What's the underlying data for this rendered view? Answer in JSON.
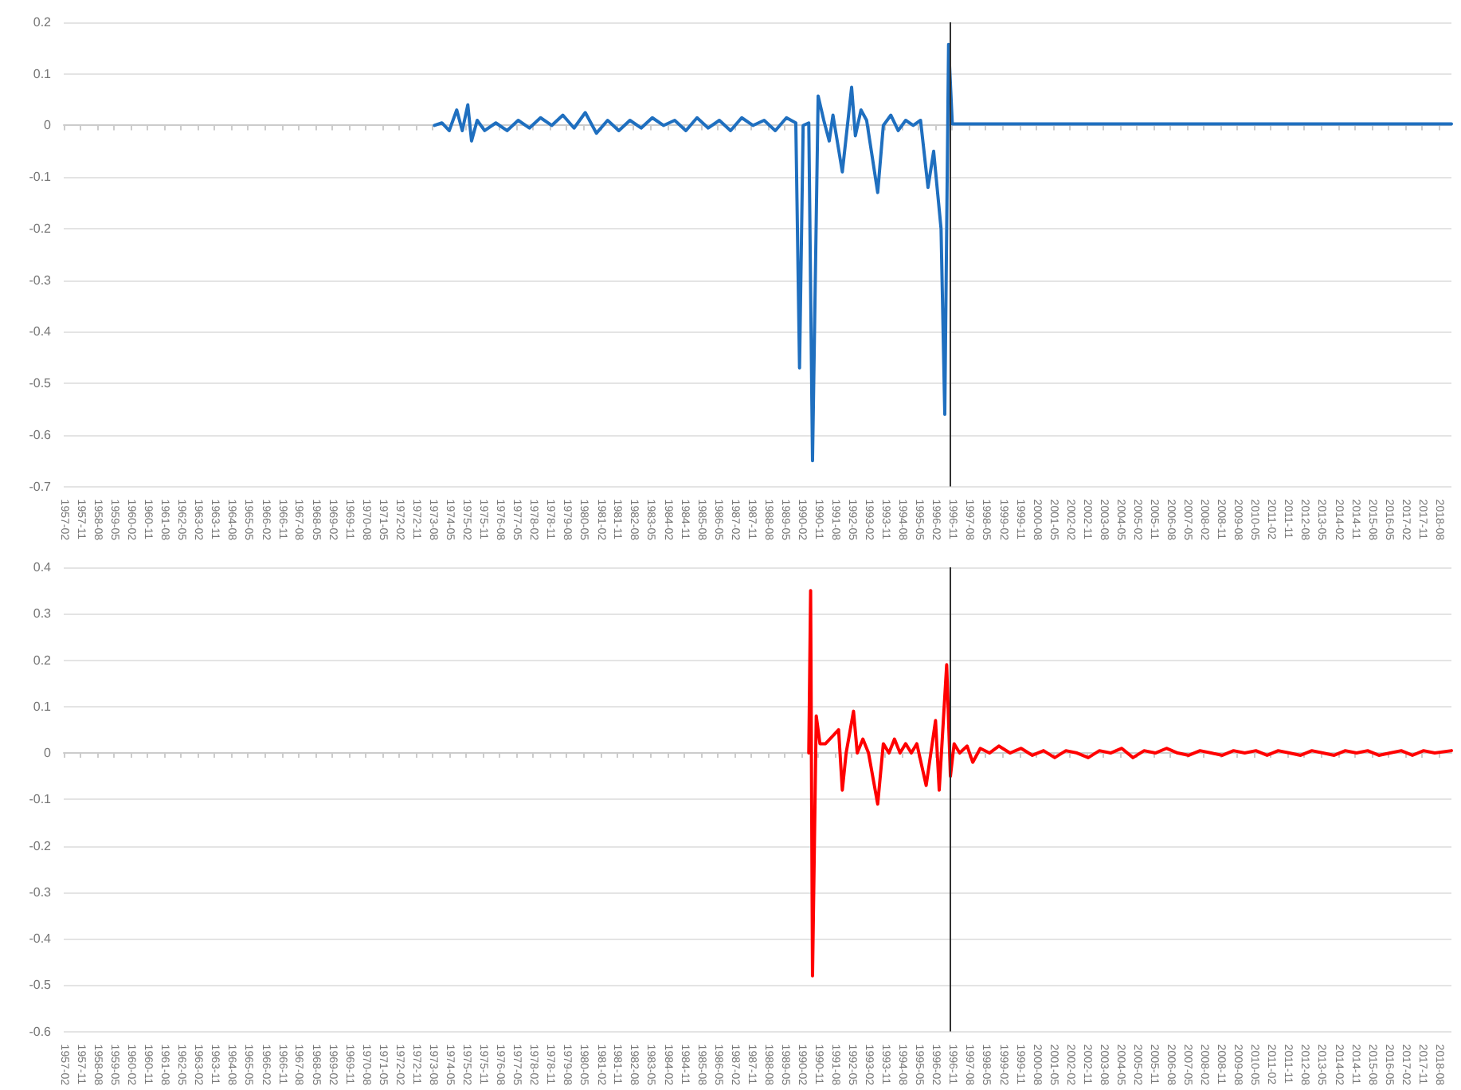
{
  "chart_data": [
    {
      "type": "line",
      "marker": "none",
      "grid": "y",
      "xlim": [
        "1957-02",
        "2019-03"
      ],
      "xticks": [
        "1957-02",
        "1957-11",
        "1958-08",
        "1959-05",
        "1960-02",
        "1960-11",
        "1961-08",
        "1962-05",
        "1963-02",
        "1963-11",
        "1964-08",
        "1965-05",
        "1966-02",
        "1966-11",
        "1967-08",
        "1968-05",
        "1969-02",
        "1969-11",
        "1970-08",
        "1971-05",
        "1972-02",
        "1972-11",
        "1973-08",
        "1974-05",
        "1975-02",
        "1975-11",
        "1976-08",
        "1977-05",
        "1978-02",
        "1978-11",
        "1979-08",
        "1980-05",
        "1981-02",
        "1981-11",
        "1982-08",
        "1983-05",
        "1984-02",
        "1984-11",
        "1985-08",
        "1986-05",
        "1987-02",
        "1987-11",
        "1988-08",
        "1989-05",
        "1990-02",
        "1990-11",
        "1991-08",
        "1992-05",
        "1993-02",
        "1993-11",
        "1994-08",
        "1995-05",
        "1996-02",
        "1996-11",
        "1997-08",
        "1998-05",
        "1999-02",
        "1999-11",
        "2000-08",
        "2001-05",
        "2002-02",
        "2002-11",
        "2003-08",
        "2004-05",
        "2005-02",
        "2005-11",
        "2006-08",
        "2007-05",
        "2008-02",
        "2008-11",
        "2009-08",
        "2010-05",
        "2011-02",
        "2011-11",
        "2012-08",
        "2013-05",
        "2014-02",
        "2014-11",
        "2015-08",
        "2016-05",
        "2017-02",
        "2017-11",
        "2018-08"
      ],
      "ylim": [
        -0.7,
        0.2
      ],
      "yticks": [
        -0.7,
        -0.6,
        -0.5,
        -0.4,
        -0.3,
        -0.2,
        -0.1,
        0,
        0.1,
        0.2
      ],
      "ref_lines": [
        {
          "axis": "x",
          "value": "1996-10",
          "color": "#333333"
        }
      ],
      "series": [
        {
          "color": "#1f6fbf",
          "x": [
            "1973-09",
            "1974-01",
            "1974-05",
            "1974-09",
            "1974-12",
            "1975-03",
            "1975-05",
            "1975-08",
            "1975-12",
            "1976-06",
            "1976-12",
            "1977-06",
            "1977-12",
            "1978-06",
            "1978-12",
            "1979-06",
            "1979-12",
            "1980-06",
            "1980-12",
            "1981-06",
            "1981-12",
            "1982-06",
            "1982-12",
            "1983-06",
            "1983-12",
            "1984-06",
            "1984-12",
            "1985-06",
            "1985-12",
            "1986-06",
            "1986-12",
            "1987-06",
            "1987-12",
            "1988-06",
            "1988-12",
            "1989-06",
            "1989-11",
            "1990-01",
            "1990-03",
            "1990-06",
            "1990-08",
            "1990-11",
            "1991-02",
            "1991-05",
            "1991-07",
            "1991-12",
            "1992-05",
            "1992-07",
            "1992-10",
            "1993-01",
            "1993-07",
            "1993-10",
            "1994-02",
            "1994-06",
            "1994-10",
            "1995-02",
            "1995-06",
            "1995-10",
            "1996-01",
            "1996-05",
            "1996-07",
            "1996-09",
            "1996-11",
            "1998-10",
            "2007-02",
            "2019-03"
          ],
          "values": [
            0,
            0.005,
            -0.01,
            0.03,
            -0.01,
            0.04,
            -0.03,
            0.01,
            -0.01,
            0.005,
            -0.01,
            0.01,
            -0.005,
            0.015,
            0,
            0.02,
            -0.005,
            0.025,
            -0.015,
            0.01,
            -0.01,
            0.01,
            -0.005,
            0.015,
            0,
            0.01,
            -0.01,
            0.015,
            -0.005,
            0.01,
            -0.01,
            0.015,
            0,
            0.01,
            -0.01,
            0.015,
            0.005,
            -0.47,
            0,
            0.005,
            -0.65,
            0.057,
            0.01,
            -0.03,
            0.02,
            -0.09,
            0.074,
            -0.02,
            0.03,
            0.01,
            -0.13,
            0,
            0.02,
            -0.01,
            0.01,
            0,
            0.01,
            -0.12,
            -0.05,
            -0.2,
            -0.56,
            0.157,
            0.003,
            0.003,
            0.003,
            0.003
          ]
        }
      ]
    },
    {
      "type": "line",
      "marker": "none",
      "grid": "y",
      "xlim": [
        "1957-02",
        "2019-03"
      ],
      "xticks": [
        "1957-02",
        "1957-11",
        "1958-08",
        "1959-05",
        "1960-02",
        "1960-11",
        "1961-08",
        "1962-05",
        "1963-02",
        "1963-11",
        "1964-08",
        "1965-05",
        "1966-02",
        "1966-11",
        "1967-08",
        "1968-05",
        "1969-02",
        "1969-11",
        "1970-08",
        "1971-05",
        "1972-02",
        "1972-11",
        "1973-08",
        "1974-05",
        "1975-02",
        "1975-11",
        "1976-08",
        "1977-05",
        "1978-02",
        "1978-11",
        "1979-08",
        "1980-05",
        "1981-02",
        "1981-11",
        "1982-08",
        "1983-05",
        "1984-02",
        "1984-11",
        "1985-08",
        "1986-05",
        "1987-02",
        "1987-11",
        "1988-08",
        "1989-05",
        "1990-02",
        "1990-11",
        "1991-08",
        "1992-05",
        "1993-02",
        "1993-11",
        "1994-08",
        "1995-05",
        "1996-02",
        "1996-11",
        "1997-08",
        "1998-05",
        "1999-02",
        "1999-11",
        "2000-08",
        "2001-05",
        "2002-02",
        "2002-11",
        "2003-08",
        "2004-05",
        "2005-02",
        "2005-11",
        "2006-08",
        "2007-05",
        "2008-02",
        "2008-11",
        "2009-08",
        "2010-05",
        "2011-02",
        "2011-11",
        "2012-08",
        "2013-05",
        "2014-02",
        "2014-11",
        "2015-08",
        "2016-05",
        "2017-02",
        "2017-11",
        "2018-08"
      ],
      "ylim": [
        -0.6,
        0.4
      ],
      "yticks": [
        -0.6,
        -0.5,
        -0.4,
        -0.3,
        -0.2,
        -0.1,
        0,
        0.1,
        0.2,
        0.3,
        0.4
      ],
      "ref_lines": [
        {
          "axis": "x",
          "value": "1996-10",
          "color": "#333333"
        }
      ],
      "series": [
        {
          "color": "#ff0000",
          "x": [
            "1990-06",
            "1990-07",
            "1990-08",
            "1990-10",
            "1990-12",
            "1991-03",
            "1991-10",
            "1991-12",
            "1992-02",
            "1992-06",
            "1992-08",
            "1992-11",
            "1993-02",
            "1993-07",
            "1993-10",
            "1994-01",
            "1994-04",
            "1994-07",
            "1994-10",
            "1995-01",
            "1995-04",
            "1995-09",
            "1996-02",
            "1996-04",
            "1996-08",
            "1996-10",
            "1996-12",
            "1997-03",
            "1997-07",
            "1997-10",
            "1998-02",
            "1998-07",
            "1998-12",
            "1999-06",
            "1999-12",
            "2000-06",
            "2000-12",
            "2001-06",
            "2001-12",
            "2002-06",
            "2002-12",
            "2003-06",
            "2003-12",
            "2004-06",
            "2004-12",
            "2005-06",
            "2005-12",
            "2006-06",
            "2006-12",
            "2007-06",
            "2007-12",
            "2008-06",
            "2008-12",
            "2009-06",
            "2009-12",
            "2010-06",
            "2010-12",
            "2011-06",
            "2011-12",
            "2012-06",
            "2012-12",
            "2013-06",
            "2013-12",
            "2014-06",
            "2014-12",
            "2015-06",
            "2015-12",
            "2016-06",
            "2016-12",
            "2017-06",
            "2017-12",
            "2018-06",
            "2019-03"
          ],
          "values": [
            0,
            0.35,
            -0.48,
            0.08,
            0.02,
            0.02,
            0.05,
            -0.08,
            0,
            0.09,
            0,
            0.03,
            0,
            -0.11,
            0.02,
            0,
            0.03,
            0,
            0.02,
            0,
            0.02,
            -0.07,
            0.07,
            -0.08,
            0.19,
            -0.05,
            0.02,
            0,
            0.015,
            -0.02,
            0.01,
            0,
            0.015,
            0,
            0.01,
            -0.005,
            0.005,
            -0.01,
            0.005,
            0,
            -0.01,
            0.005,
            0,
            0.01,
            -0.01,
            0.005,
            0,
            0.01,
            0,
            -0.005,
            0.005,
            0,
            -0.005,
            0.005,
            0,
            0.005,
            -0.005,
            0.005,
            0,
            -0.005,
            0.005,
            0,
            -0.005,
            0.005,
            0,
            0.005,
            -0.005,
            0,
            0.005,
            -0.005,
            0.005,
            0,
            0.005
          ]
        }
      ]
    }
  ]
}
